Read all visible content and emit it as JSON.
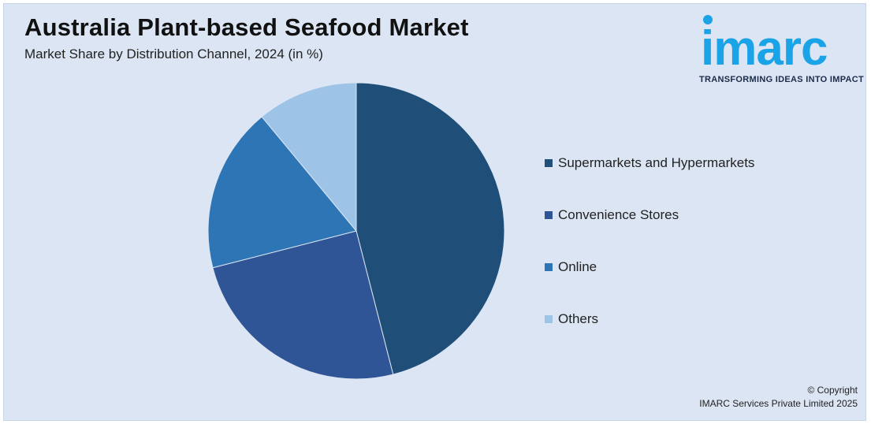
{
  "header": {
    "title": "Australia Plant-based Seafood Market",
    "subtitle": "Market Share by Distribution Channel, 2024 (in %)"
  },
  "logo": {
    "wordmark": "imarc",
    "tagline": "TRANSFORMING IDEAS INTO IMPACT",
    "color": "#1aa3e6"
  },
  "chart_data": {
    "type": "pie",
    "title": "Australia Plant-based Seafood Market",
    "subtitle": "Market Share by Distribution Channel, 2024 (in %)",
    "categories": [
      "Supermarkets and Hypermarkets",
      "Convenience Stores",
      "Online",
      "Others"
    ],
    "values": [
      46,
      25,
      18,
      11
    ],
    "colors": [
      "#1f4e79",
      "#2f5597",
      "#2e75b6",
      "#9dc3e6"
    ],
    "legend_position": "right"
  },
  "footer": {
    "copyright_line1": "© Copyright",
    "copyright_line2": "IMARC Services Private Limited 2025"
  }
}
